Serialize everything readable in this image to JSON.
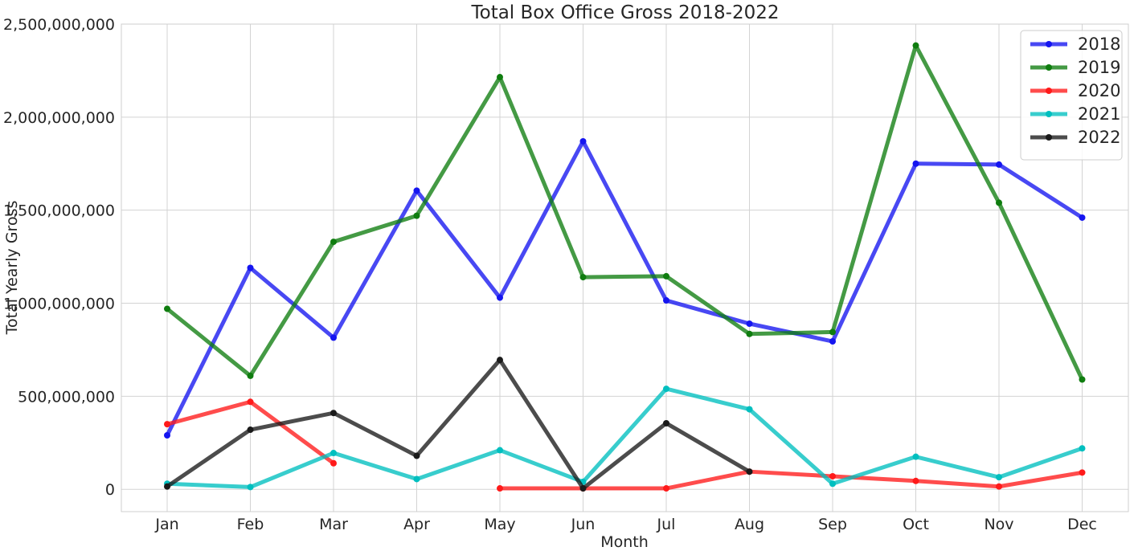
{
  "chart_data": {
    "type": "line",
    "title": "Total Box Office Gross 2018-2022",
    "xlabel": "Month",
    "ylabel": "Total Yearly Gross",
    "categories": [
      "Jan",
      "Feb",
      "Mar",
      "Apr",
      "May",
      "Jun",
      "Jul",
      "Aug",
      "Sep",
      "Oct",
      "Nov",
      "Dec"
    ],
    "ylim": [
      -120000000,
      2500000000
    ],
    "yticks": [
      0,
      500000000,
      1000000000,
      1500000000,
      2000000000,
      2500000000
    ],
    "ytick_labels": [
      "0",
      "500,000,000",
      "1,000,000,000",
      "1,500,000,000",
      "2,000,000,000",
      "2,500,000,000"
    ],
    "grid": true,
    "legend_position": "top-right",
    "series": [
      {
        "name": "2018",
        "color": "#1515f0",
        "values": [
          290000000,
          1190000000,
          815000000,
          1605000000,
          1030000000,
          1870000000,
          1015000000,
          890000000,
          795000000,
          1750000000,
          1745000000,
          1460000000
        ]
      },
      {
        "name": "2019",
        "color": "#0f7d0f",
        "values": [
          970000000,
          610000000,
          1330000000,
          1470000000,
          2215000000,
          1140000000,
          1145000000,
          835000000,
          845000000,
          2385000000,
          1540000000,
          590000000
        ]
      },
      {
        "name": "2020",
        "color": "#ff1a1a",
        "values": [
          350000000,
          470000000,
          140000000,
          null,
          5000000,
          5000000,
          5000000,
          95000000,
          70000000,
          45000000,
          15000000,
          90000000
        ]
      },
      {
        "name": "2021",
        "color": "#00bfbf",
        "values": [
          30000000,
          12000000,
          195000000,
          55000000,
          210000000,
          40000000,
          540000000,
          430000000,
          30000000,
          175000000,
          65000000,
          220000000
        ]
      },
      {
        "name": "2022",
        "color": "#1a1a1a",
        "values": [
          15000000,
          320000000,
          410000000,
          180000000,
          695000000,
          5000000,
          355000000,
          95000000,
          null,
          null,
          null,
          null
        ]
      }
    ]
  }
}
